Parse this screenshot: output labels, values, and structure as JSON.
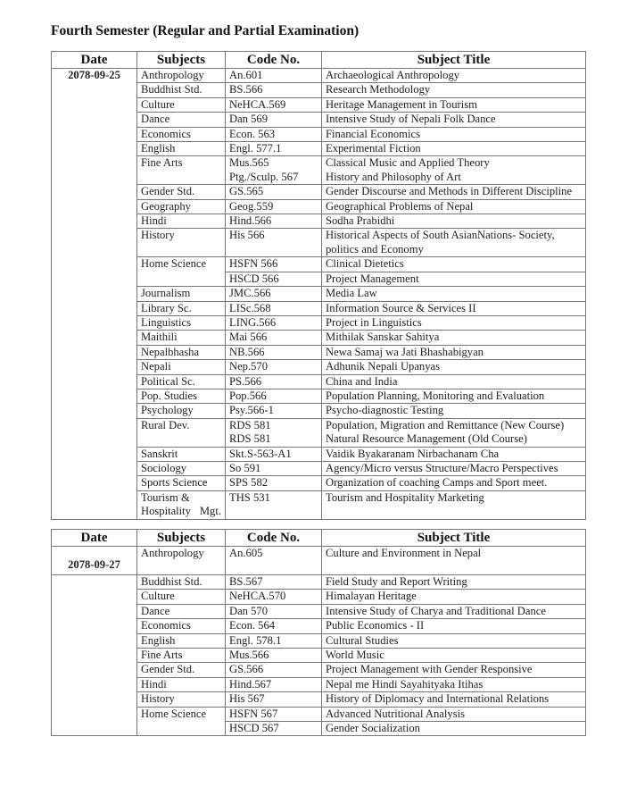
{
  "heading": "Fourth Semester (Regular and Partial Examination)",
  "columns": [
    "Date",
    "Subjects",
    "Code No.",
    "Subject Title"
  ],
  "tables": [
    {
      "date": "2078-09-25",
      "entries": [
        {
          "subject": "Anthropology",
          "rows": [
            {
              "code": "An.601",
              "title": "Archaeological Anthropology"
            }
          ]
        },
        {
          "subject": "Buddhist Std.",
          "rows": [
            {
              "code": "BS.566",
              "title": "Research Methodology"
            }
          ]
        },
        {
          "subject": "Culture",
          "rows": [
            {
              "code": "NeHCA.569",
              "title": "Heritage Management in Tourism"
            }
          ]
        },
        {
          "subject": "Dance",
          "rows": [
            {
              "code": "Dan 569",
              "title": "Intensive Study of Nepali Folk Dance"
            }
          ]
        },
        {
          "subject": "Economics",
          "rows": [
            {
              "code": "Econ. 563",
              "title": "Financial Economics"
            }
          ]
        },
        {
          "subject": "English",
          "rows": [
            {
              "code": "Engl. 577.1",
              "title": "Experimental Fiction"
            }
          ]
        },
        {
          "subject": "Fine Arts",
          "rows": [
            {
              "code": "Mus.565\nPtg./Sculp. 567",
              "title": "Classical Music and Applied Theory\nHistory and Philosophy of Art"
            }
          ]
        },
        {
          "subject": "Gender Std.",
          "rows": [
            {
              "code": "GS.565",
              "title": "Gender Discourse and Methods in Different Discipline"
            }
          ]
        },
        {
          "subject": "Geography",
          "rows": [
            {
              "code": "Geog.559",
              "title": "Geographical Problems of Nepal"
            }
          ]
        },
        {
          "subject": "Hindi",
          "rows": [
            {
              "code": "Hind.566",
              "title": "Sodha Prabidhi"
            }
          ]
        },
        {
          "subject": "History",
          "rows": [
            {
              "code": "His 566",
              "title": "Historical Aspects of South AsianNations- Society, politics and Economy"
            }
          ]
        },
        {
          "subject": "Home Science",
          "rows": [
            {
              "code": "HSFN 566",
              "title": "Clinical Dietetics"
            },
            {
              "code": "HSCD 566",
              "title": "Project Management"
            }
          ]
        },
        {
          "subject": "Journalism",
          "rows": [
            {
              "code": "JMC.566",
              "title": "Media Law"
            }
          ]
        },
        {
          "subject": "Library Sc.",
          "rows": [
            {
              "code": "LISc.568",
              "title": "Information Source & Services II"
            }
          ]
        },
        {
          "subject": "Linguistics",
          "rows": [
            {
              "code": "LING.566",
              "title": "Project in Linguistics"
            }
          ]
        },
        {
          "subject": "Maithili",
          "rows": [
            {
              "code": "Mai 566",
              "title": "Mithilak Sanskar Sahitya"
            }
          ]
        },
        {
          "subject": "Nepalbhasha",
          "rows": [
            {
              "code": "NB.566",
              "title": "Newa Samaj wa Jati Bhashabigyan"
            }
          ]
        },
        {
          "subject": "Nepali",
          "rows": [
            {
              "code": "Nep.570",
              "title": " Adhunik Nepali  Upanyas"
            }
          ]
        },
        {
          "subject": "Political Sc.",
          "rows": [
            {
              "code": "PS.566",
              "title": "China and India"
            }
          ]
        },
        {
          "subject": "Pop. Studies",
          "rows": [
            {
              "code": "Pop.566",
              "title": "Population Planning, Monitoring and Evaluation"
            }
          ]
        },
        {
          "subject": "Psychology",
          "rows": [
            {
              "code": "Psy.566-1",
              "title": "Psycho-diagnostic Testing"
            }
          ]
        },
        {
          "subject": "Rural Dev.",
          "rows": [
            {
              "code": "RDS 581\nRDS 581",
              "title": "Population, Migration and Remittance (New Course)\nNatural Resource Management (Old Course)"
            }
          ]
        },
        {
          "subject": "Sanskrit",
          "rows": [
            {
              "code": "Skt.S-563-A1",
              "title": "Vaidik Byakaranam Nirbachanam Cha"
            }
          ]
        },
        {
          "subject": "Sociology",
          "rows": [
            {
              "code": "So 591",
              "title": "Agency/Micro versus Structure/Macro Perspectives"
            }
          ]
        },
        {
          "subject": "Sports Science",
          "rows": [
            {
              "code": "SPS 582",
              "title": "Organization of coaching Camps and Sport meet."
            }
          ]
        },
        {
          "subject": "Tourism & Hospitality Mgt.",
          "rows": [
            {
              "code": "THS 531",
              "title": "Tourism and Hospitality Marketing"
            }
          ]
        }
      ]
    },
    {
      "date": "2078-09-27",
      "entries": [
        {
          "subject": "Anthropology",
          "rows": [
            {
              "code": "An.605",
              "title": "Culture and Environment in Nepal"
            }
          ]
        },
        {
          "subject": "Buddhist Std.",
          "rows": [
            {
              "code": "BS.567",
              "title": "Field Study and Report Writing"
            }
          ]
        },
        {
          "subject": "Culture",
          "rows": [
            {
              "code": "NeHCA.570",
              "title": "Himalayan Heritage"
            }
          ]
        },
        {
          "subject": "Dance",
          "rows": [
            {
              "code": "Dan 570",
              "title": "Intensive Study of Charya and Traditional Dance"
            }
          ]
        },
        {
          "subject": "Economics",
          "rows": [
            {
              "code": "Econ. 564",
              "title": "Public Economics - II"
            }
          ]
        },
        {
          "subject": "English",
          "rows": [
            {
              "code": "Engl. 578.1",
              "title": "Cultural Studies"
            }
          ]
        },
        {
          "subject": "Fine Arts",
          "rows": [
            {
              "code": "Mus.566",
              "title": "World Music"
            }
          ]
        },
        {
          "subject": "Gender Std.",
          "rows": [
            {
              "code": "GS.566",
              "title": "Project Management with Gender Responsive"
            }
          ]
        },
        {
          "subject": "Hindi",
          "rows": [
            {
              "code": "Hind.567",
              "title": "Nepal me Hindi Sayahityaka Itihas"
            }
          ]
        },
        {
          "subject": "History",
          "rows": [
            {
              "code": "His 567",
              "title": "History of Diplomacy and International Relations"
            }
          ]
        },
        {
          "subject": "Home Science",
          "rows": [
            {
              "code": "HSFN 567",
              "title": "Advanced Nutritional Analysis"
            },
            {
              "code": "HSCD 567",
              "title": "Gender Socialization"
            }
          ]
        }
      ]
    }
  ]
}
